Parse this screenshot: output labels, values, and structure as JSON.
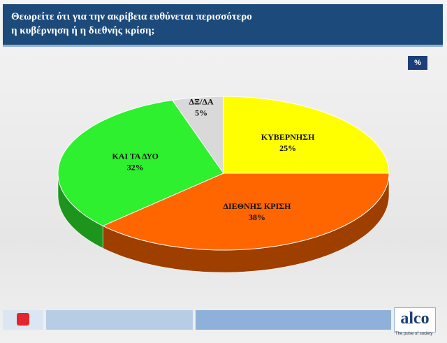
{
  "chart_data": {
    "type": "pie",
    "title": "Θεωρείτε ότι για την ακρίβεια ευθύνεται περισσότερο\nη κυβέρνηση ή η διεθνής κρίση;",
    "badge": "%",
    "categories": [
      "ΚΥΒΕΡΝΗΣΗ",
      "ΔΙΕΘΝΗΣ ΚΡΙΣΗ",
      "ΚΑΙ ΤΑ ΔΥΟ",
      "ΔΞ/ΔΑ"
    ],
    "values": [
      25,
      38,
      32,
      5
    ],
    "value_labels": [
      "25%",
      "38%",
      "32%",
      "5%"
    ],
    "colors": [
      "#ffff00",
      "#ff6600",
      "#2ef02e",
      "#d9d9d9"
    ]
  },
  "footer": {
    "logo": "alco",
    "tagline": "The pulse of society"
  }
}
